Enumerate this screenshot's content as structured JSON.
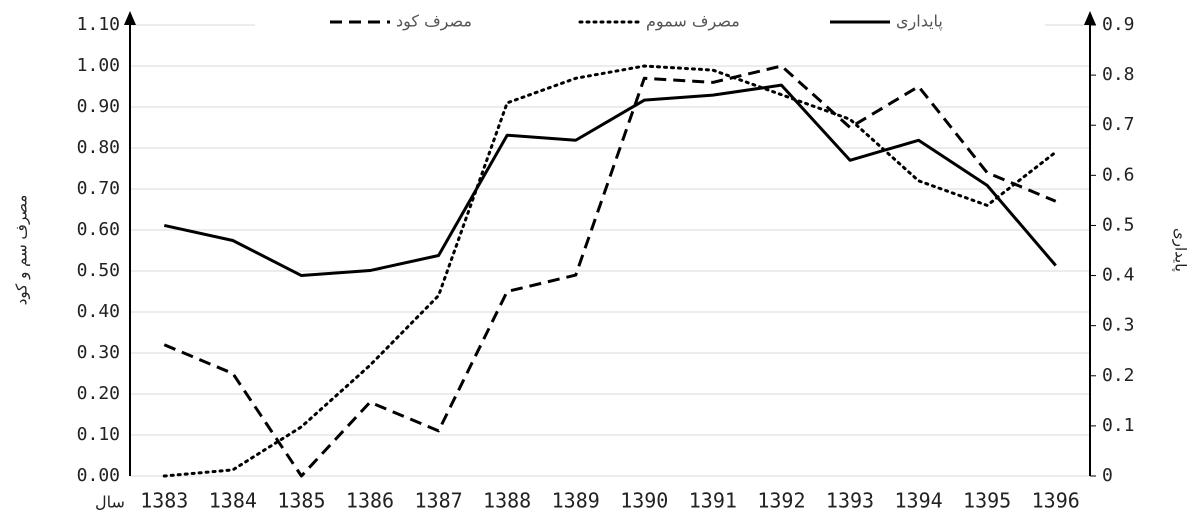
{
  "chart_data": {
    "type": "line",
    "categories": [
      "1383",
      "1384",
      "1385",
      "1386",
      "1387",
      "1388",
      "1389",
      "1390",
      "1391",
      "1392",
      "1393",
      "1394",
      "1395",
      "1396"
    ],
    "x_label": "سال",
    "y_label": "مصرف سم و کود",
    "y2_label": "پایداری",
    "ylim": [
      0,
      1.1
    ],
    "yticks": [
      {
        "value": 0,
        "label": "0.00"
      },
      {
        "value": 0.1,
        "label": "0.10"
      },
      {
        "value": 0.2,
        "label": "0.20"
      },
      {
        "value": 0.3,
        "label": "0.30"
      },
      {
        "value": 0.4,
        "label": "0.40"
      },
      {
        "value": 0.5,
        "label": "0.50"
      },
      {
        "value": 0.6,
        "label": "0.60"
      },
      {
        "value": 0.7,
        "label": "0.70"
      },
      {
        "value": 0.8,
        "label": "0.80"
      },
      {
        "value": 0.9,
        "label": "0.90"
      },
      {
        "value": 1,
        "label": "1.00"
      },
      {
        "value": 1.1,
        "label": "1.10"
      }
    ],
    "y2lim": [
      0,
      0.9
    ],
    "y2ticks": [
      0,
      0.1,
      0.2,
      0.3,
      0.4,
      0.5,
      0.6,
      0.7,
      0.8,
      0.9
    ],
    "grid": true,
    "legend": "top",
    "series": [
      {
        "name": "مصرف کود",
        "color": "#000000",
        "dash": "dashed",
        "values": [
          0.32,
          0.25,
          0.0,
          0.18,
          0.11,
          0.45,
          0.49,
          0.97,
          0.96,
          1.0,
          0.85,
          0.95,
          0.74,
          0.67
        ]
      },
      {
        "name": "مصرف سموم",
        "color": "#000000",
        "dash": "dotted",
        "values": [
          0.0,
          0.015,
          0.12,
          0.27,
          0.44,
          0.91,
          0.97,
          1.0,
          0.99,
          0.93,
          0.87,
          0.72,
          0.66,
          0.79
        ]
      },
      {
        "name": "پایداری",
        "color": "#000000",
        "dash": "solid",
        "axis": "y2",
        "values": [
          0.5,
          0.47,
          0.4,
          0.41,
          0.44,
          0.68,
          0.67,
          0.75,
          0.76,
          0.78,
          0.63,
          0.67,
          0.58,
          0.42
        ]
      }
    ]
  }
}
